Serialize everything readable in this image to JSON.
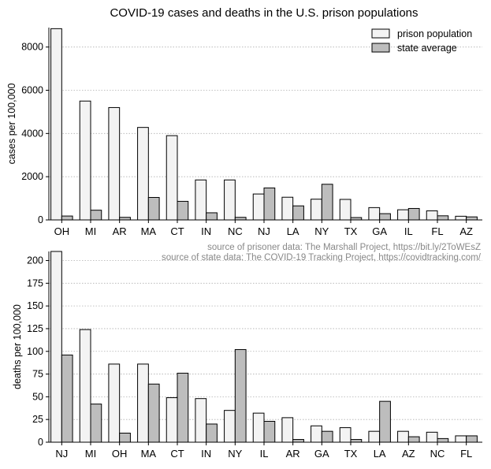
{
  "title": "COVID-19 cases and deaths in the U.S. prison populations",
  "colors": {
    "prison": "#f3f3f3",
    "state": "#bdbdbd"
  },
  "legend": {
    "prison_label": "prison population",
    "state_label": "state average"
  },
  "sources": {
    "line1": "source of prisoner data: The Marshall Project, https://bit.ly/2ToWEsZ",
    "line2": "source of state data: The COVID-19 Tracking Project, https://covidtracking.com/"
  },
  "chart_data": [
    {
      "type": "bar",
      "title": "COVID-19 cases and deaths in the U.S. prison populations",
      "ylabel": "cases per 100,000",
      "xlabel": "",
      "ylim": [
        0,
        8900
      ],
      "yticks": [
        0,
        2000,
        4000,
        6000,
        8000
      ],
      "ytick_labels": [
        "0",
        "2000",
        "4000",
        "6000",
        "8000"
      ],
      "categories": [
        "OH",
        "MI",
        "AR",
        "MA",
        "CT",
        "IN",
        "NC",
        "NJ",
        "LA",
        "NY",
        "TX",
        "GA",
        "IL",
        "FL",
        "AZ"
      ],
      "series": [
        {
          "name": "prison population",
          "values": [
            8850,
            5500,
            5200,
            4280,
            3900,
            1850,
            1850,
            1200,
            1050,
            960,
            950,
            570,
            470,
            420,
            170
          ]
        },
        {
          "name": "state average",
          "values": [
            180,
            450,
            120,
            1040,
            860,
            330,
            120,
            1480,
            650,
            1650,
            110,
            290,
            530,
            190,
            140
          ]
        }
      ]
    },
    {
      "type": "bar",
      "ylabel": "deaths per 100,000",
      "xlabel": "",
      "ylim": [
        0,
        210
      ],
      "yticks": [
        0,
        25,
        50,
        75,
        100,
        125,
        150,
        175,
        200
      ],
      "ytick_labels": [
        "0",
        "25",
        "50",
        "75",
        "100",
        "125",
        "150",
        "175",
        "200"
      ],
      "categories": [
        "NJ",
        "MI",
        "OH",
        "MA",
        "CT",
        "IN",
        "NY",
        "IL",
        "AR",
        "GA",
        "TX",
        "LA",
        "AZ",
        "NC",
        "FL"
      ],
      "series": [
        {
          "name": "prison population",
          "values": [
            210,
            124,
            86,
            86,
            49,
            48,
            35,
            32,
            27,
            18,
            16,
            12,
            12,
            11,
            7
          ]
        },
        {
          "name": "state average",
          "values": [
            96,
            42,
            10,
            64,
            76,
            20,
            102,
            23,
            3,
            12,
            3,
            45,
            6,
            4,
            7
          ]
        }
      ]
    }
  ]
}
